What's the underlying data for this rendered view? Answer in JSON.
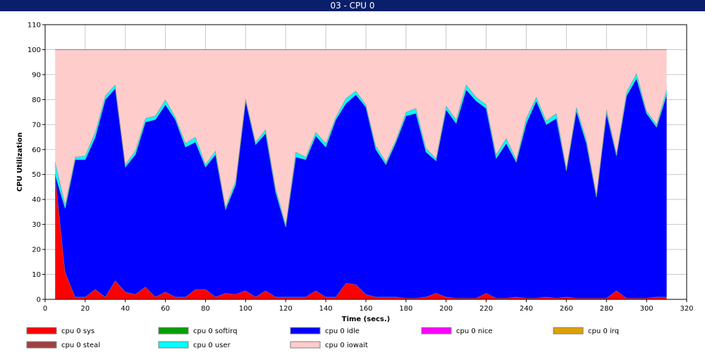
{
  "window": {
    "title": "03 - CPU 0"
  },
  "chart_data": {
    "type": "area",
    "stacked": true,
    "xlabel": "Time (secs.)",
    "ylabel": "CPU Utilization",
    "xlim": [
      0,
      320
    ],
    "ylim": [
      0,
      110
    ],
    "xticks": [
      0,
      20,
      40,
      60,
      80,
      100,
      120,
      140,
      160,
      180,
      200,
      220,
      240,
      260,
      280,
      300,
      320
    ],
    "yticks": [
      0,
      10,
      20,
      30,
      40,
      50,
      60,
      70,
      80,
      90,
      100,
      110
    ],
    "grid": true,
    "legend_position": "bottom",
    "x": [
      5,
      10,
      15,
      20,
      25,
      30,
      35,
      40,
      45,
      50,
      55,
      60,
      65,
      70,
      75,
      80,
      85,
      90,
      95,
      100,
      105,
      110,
      115,
      120,
      125,
      130,
      135,
      140,
      145,
      150,
      155,
      160,
      165,
      170,
      175,
      180,
      185,
      190,
      195,
      200,
      205,
      210,
      215,
      220,
      225,
      230,
      235,
      240,
      245,
      250,
      255,
      260,
      265,
      270,
      275,
      280,
      285,
      290,
      295,
      300,
      305,
      310
    ],
    "series": [
      {
        "name": "cpu 0 sys",
        "color": "#ff0000",
        "values": [
          50,
          11,
          1,
          1,
          4,
          1,
          7.5,
          3,
          2,
          5,
          1,
          3,
          1,
          1,
          4,
          4,
          1,
          2.5,
          2,
          3.5,
          1,
          3.5,
          1,
          1,
          1,
          1,
          3.5,
          1,
          1,
          6.5,
          6,
          2,
          1,
          1,
          1,
          0.5,
          0.5,
          1,
          2.5,
          1,
          0.5,
          0.5,
          0.5,
          2.5,
          0.5,
          0.5,
          1,
          0.5,
          0.5,
          1,
          0.5,
          1,
          0.5,
          0.5,
          0.5,
          0.5,
          3.5,
          0.5,
          0.5,
          0.5,
          1,
          1
        ]
      },
      {
        "name": "cpu 0 softirq",
        "color": "#00a000",
        "values": [
          0,
          0,
          0,
          0,
          0,
          0,
          0,
          0,
          0,
          0,
          0,
          0,
          0,
          0,
          0,
          0,
          0,
          0,
          0,
          0,
          0,
          0,
          0,
          0,
          0,
          0,
          0,
          0,
          0,
          0,
          0,
          0,
          0,
          0,
          0,
          0,
          0,
          0,
          0,
          0,
          0,
          0,
          0,
          0,
          0,
          0,
          0,
          0,
          0,
          0,
          0,
          0,
          0,
          0,
          0,
          0,
          0,
          0,
          0,
          0,
          0,
          0
        ]
      },
      {
        "name": "cpu 0 idle",
        "color": "#0000ff",
        "values": [
          0,
          25.5,
          55,
          55,
          61,
          79,
          77,
          50,
          56,
          66,
          71,
          75,
          71,
          60,
          59,
          49,
          57,
          33.5,
          44,
          76,
          61,
          63,
          42,
          28,
          56,
          55,
          62,
          60,
          71,
          72,
          76,
          75,
          59,
          53,
          62,
          73,
          74,
          58,
          53,
          75,
          70,
          83.5,
          79,
          74,
          56,
          62,
          54,
          70,
          79,
          69,
          72,
          50.5,
          75,
          62,
          40.5,
          74,
          54,
          81,
          88,
          74,
          68,
          81
        ]
      },
      {
        "name": "cpu 0 nice",
        "color": "#ff00ff",
        "values": [
          0,
          0,
          0,
          0,
          0,
          0,
          0,
          0,
          0,
          0,
          0,
          0,
          0,
          0,
          0,
          0,
          0,
          0,
          0,
          0,
          0,
          0,
          0,
          0,
          0,
          0,
          0,
          0,
          0,
          0,
          0,
          0,
          0,
          0,
          0,
          0,
          0,
          0,
          0,
          0,
          0,
          0,
          0,
          0,
          0,
          0,
          0,
          0,
          0,
          0,
          0,
          0,
          0,
          0,
          0,
          0,
          0,
          0,
          0,
          0,
          0,
          0
        ]
      },
      {
        "name": "cpu 0 irq",
        "color": "#e0a000",
        "values": [
          0,
          0,
          0,
          0,
          0,
          0,
          0,
          0,
          0,
          0,
          0,
          0,
          0,
          0,
          0,
          0,
          0,
          0,
          0,
          0,
          0,
          0,
          0,
          0,
          0,
          0,
          0,
          0,
          0,
          0,
          0,
          0,
          0,
          0,
          0,
          0,
          0,
          0,
          0,
          0,
          0,
          0,
          0,
          0,
          0,
          0,
          0,
          0,
          0,
          0,
          0,
          0,
          0,
          0,
          0,
          0,
          0,
          0,
          0,
          0,
          0,
          0
        ]
      },
      {
        "name": "cpu 0 steal",
        "color": "#a04040",
        "values": [
          0,
          0,
          0,
          0,
          0,
          0,
          0,
          0,
          0,
          0,
          0,
          0,
          0,
          0,
          0,
          0,
          0,
          0,
          0,
          0,
          0,
          0,
          0,
          0,
          0,
          0,
          0,
          0,
          0,
          0,
          0,
          0,
          0,
          0,
          0,
          0,
          0,
          0,
          0,
          0,
          0,
          0,
          0,
          0,
          0,
          0,
          0,
          0,
          0,
          0,
          0,
          0,
          0,
          0,
          0,
          0,
          0,
          0,
          0,
          0,
          0,
          0
        ]
      },
      {
        "name": "cpu 0 user",
        "color": "#00ffff",
        "values": [
          5,
          1.5,
          1,
          1.5,
          2,
          1.5,
          1.5,
          1,
          1.5,
          1.5,
          1.5,
          2,
          1,
          1.5,
          2,
          1,
          1.5,
          1,
          1.5,
          1,
          1,
          1.5,
          1.5,
          1,
          2,
          1,
          1.5,
          1.5,
          1,
          2,
          1.5,
          1,
          1.5,
          1,
          1,
          1.5,
          2,
          1.5,
          1,
          1.5,
          1.5,
          2,
          1.5,
          1.5,
          1.5,
          2,
          1,
          2,
          1.5,
          1.5,
          2,
          1,
          1.5,
          1.5,
          1,
          1.5,
          1,
          1.5,
          2,
          1,
          1,
          2
        ]
      },
      {
        "name": "cpu 0 iowait",
        "color": "#ffcccc",
        "values": [
          45,
          62,
          43,
          42.5,
          33,
          18.5,
          14,
          46,
          40.5,
          27.5,
          26.5,
          20,
          27,
          37.5,
          35,
          46,
          40.5,
          63,
          52.5,
          19.5,
          37,
          32,
          55.5,
          70,
          41,
          43,
          33,
          37.5,
          27,
          19.5,
          16.5,
          22,
          38.5,
          45,
          36,
          25,
          23.5,
          39.5,
          43.5,
          22.5,
          28,
          14,
          19,
          22,
          42,
          35.5,
          44,
          27.5,
          19,
          28.5,
          25.5,
          47.5,
          23,
          36,
          58,
          24,
          41.5,
          17,
          9.5,
          24.5,
          30,
          16
        ]
      }
    ]
  }
}
